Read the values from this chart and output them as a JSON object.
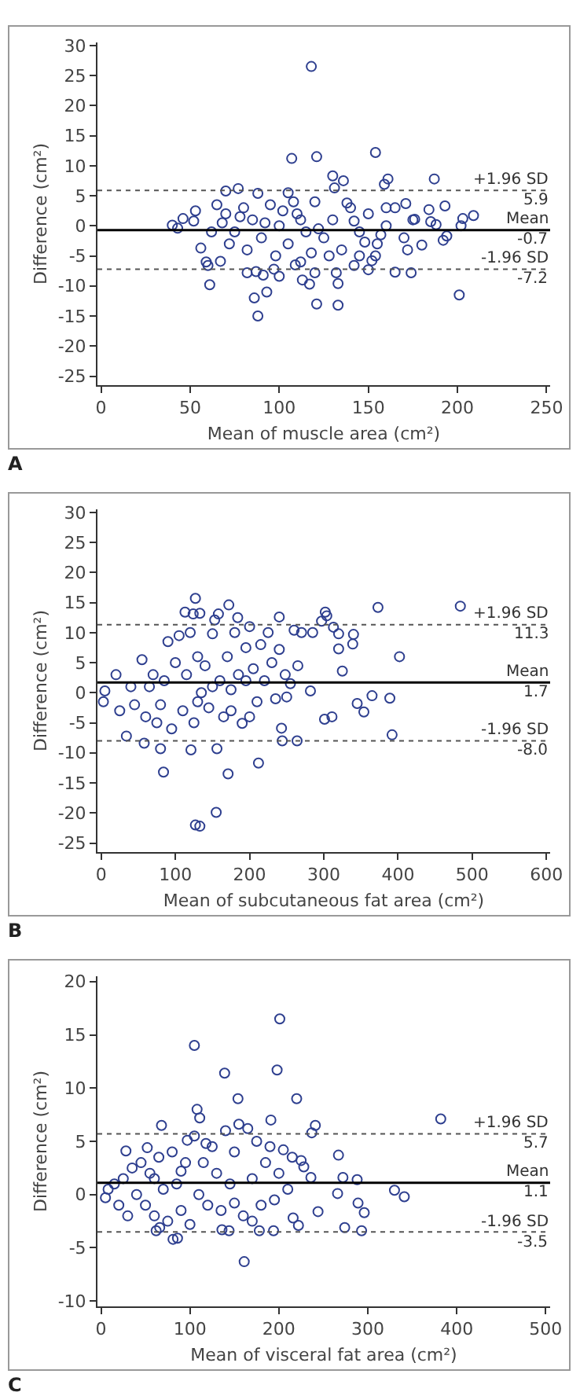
{
  "chart_data": [
    {
      "type": "scatter",
      "xlabel": "Mean of muscle area (cm²)",
      "ylabel": "Difference (cm²)",
      "annotations": [
        "A"
      ],
      "xlim": [
        -2,
        252
      ],
      "xticks": [
        0,
        50,
        100,
        150,
        200,
        250
      ],
      "ylim": [
        -26.5,
        30.5
      ],
      "yticks": [
        -25,
        -20,
        -15,
        -10,
        -5,
        0,
        5,
        10,
        15,
        20,
        25,
        30
      ],
      "grid": false,
      "marker": "circle",
      "ref_lines": [
        {
          "axis": "y",
          "value": 5.9,
          "label": "+1.96 SD\n5.9",
          "line_style": "dotted",
          "color": "#555555"
        },
        {
          "axis": "y",
          "value": -0.7,
          "label": "Mean\n-0.7",
          "line_style": "solid",
          "color": "#000000"
        },
        {
          "axis": "y",
          "value": -7.2,
          "label": "-1.96 SD\n-7.2",
          "line_style": "dotted",
          "color": "#555555"
        }
      ],
      "series": [
        {
          "color": "#2e3f8f",
          "x": [
            118,
            107,
            121,
            154,
            130,
            136,
            161,
            187,
            77,
            131,
            70,
            88,
            105,
            159,
            193,
            209,
            203,
            202,
            40,
            43,
            46,
            53,
            52,
            56,
            59,
            60,
            61,
            67,
            82,
            86,
            88,
            87,
            93,
            91,
            97,
            100,
            113,
            117,
            121,
            133,
            133,
            120,
            132,
            150,
            165,
            174,
            201,
            192,
            194,
            185,
            188,
            184,
            180,
            171,
            176,
            172,
            142,
            152,
            154,
            112,
            109,
            65,
            70,
            75,
            80,
            85,
            90,
            95,
            100,
            105,
            110,
            115,
            120,
            125,
            130,
            135,
            140,
            145,
            150,
            155,
            160,
            165,
            170,
            175,
            72,
            82,
            98,
            118,
            128,
            145,
            108,
            138,
            160,
            68,
            78,
            92,
            102,
            122,
            142,
            157,
            62,
            112,
            148
          ],
          "values": [
            26.5,
            11.2,
            11.5,
            12.2,
            8.3,
            7.5,
            7.8,
            7.8,
            6.2,
            6.3,
            5.8,
            5.4,
            5.5,
            6.9,
            3.3,
            1.7,
            1.2,
            0,
            0.1,
            -0.4,
            1.2,
            2.5,
            0.8,
            -3.7,
            -6,
            -6.6,
            -9.8,
            -5.9,
            -7.8,
            -12,
            -15,
            -7.6,
            -11,
            -8.2,
            -7.2,
            -8.4,
            -9,
            -9.7,
            -13,
            -13.2,
            -9.6,
            -7.8,
            -7.8,
            -7.3,
            -7.7,
            -7.8,
            -11.5,
            -2.4,
            -1.7,
            0.7,
            0.2,
            2.7,
            -3.2,
            3.7,
            1.1,
            -4,
            -6.6,
            -5.8,
            -5,
            -6,
            -6.5,
            3.5,
            2,
            -1,
            3,
            1,
            -2,
            3.5,
            0,
            -3,
            2,
            -1,
            4,
            -2,
            1,
            -4,
            3,
            -1,
            2,
            -3,
            0,
            3,
            -2,
            1,
            -3,
            -4,
            -5,
            -4.5,
            -5,
            -5,
            4,
            3.8,
            3,
            0.5,
            1.5,
            0.5,
            2.5,
            -0.5,
            0.8,
            -1.5,
            -1,
            1,
            -2.7
          ]
        }
      ]
    },
    {
      "type": "scatter",
      "xlabel": "Mean of subcutaneous fat area (cm²)",
      "ylabel": "Difference (cm²)",
      "annotations": [
        "B"
      ],
      "xlim": [
        -5,
        605
      ],
      "xticks": [
        0,
        100,
        200,
        300,
        400,
        500,
        600
      ],
      "ylim": [
        -26.5,
        30.5
      ],
      "yticks": [
        -25,
        -20,
        -15,
        -10,
        -5,
        0,
        5,
        10,
        15,
        20,
        25,
        30
      ],
      "grid": false,
      "marker": "circle",
      "ref_lines": [
        {
          "axis": "y",
          "value": 11.3,
          "label": "+1.96 SD\n11.3",
          "line_style": "dotted",
          "color": "#555555"
        },
        {
          "axis": "y",
          "value": 1.7,
          "label": "Mean\n1.7",
          "line_style": "solid",
          "color": "#000000"
        },
        {
          "axis": "y",
          "value": -8.0,
          "label": "-1.96 SD\n-8.0",
          "line_style": "dotted",
          "color": "#555555"
        }
      ],
      "series": [
        {
          "color": "#2e3f8f",
          "x": [
            127,
            172,
            113,
            124,
            133,
            158,
            153,
            184,
            240,
            302,
            304,
            297,
            313,
            320,
            340,
            339,
            373,
            484,
            320,
            325,
            282,
            265,
            301,
            311,
            345,
            354,
            365,
            389,
            392,
            402,
            243,
            244,
            264,
            212,
            171,
            84,
            121,
            156,
            80,
            58,
            34,
            127,
            133,
            155,
            5,
            3,
            20,
            25,
            40,
            55,
            60,
            70,
            80,
            90,
            95,
            100,
            105,
            110,
            115,
            120,
            125,
            130,
            135,
            140,
            145,
            150,
            160,
            165,
            170,
            175,
            180,
            185,
            190,
            195,
            200,
            200,
            205,
            210,
            215,
            220,
            225,
            230,
            235,
            240,
            248,
            250,
            255,
            260,
            270,
            285,
            45,
            65,
            75,
            85,
            130,
            150,
            175,
            195
          ],
          "values": [
            15.7,
            14.6,
            13.4,
            13.1,
            13.2,
            13.1,
            12.1,
            12.5,
            12.6,
            13.4,
            12.8,
            11.9,
            10.9,
            9.8,
            9.7,
            8.1,
            14.2,
            14.4,
            7.3,
            3.6,
            0.3,
            4.5,
            -4.4,
            -4,
            -1.8,
            -3.2,
            -0.5,
            -0.9,
            -7,
            6,
            -5.9,
            -8,
            -8,
            -11.7,
            -13.5,
            -13.2,
            -9.5,
            -9.3,
            -9.3,
            -8.4,
            -7.2,
            -22,
            -22.2,
            -19.9,
            0.3,
            -1.5,
            3,
            -3,
            1,
            5.5,
            -4,
            3,
            -2,
            8.5,
            -6,
            5,
            9.5,
            -3,
            3,
            10,
            -5,
            6,
            0,
            4.5,
            -2.5,
            9.8,
            2,
            -4,
            6,
            0.5,
            10,
            3,
            -5.1,
            7.5,
            -4,
            11,
            4,
            -1.5,
            8,
            2,
            10,
            5,
            -1,
            7.2,
            3,
            -0.7,
            1.5,
            10.4,
            10,
            10,
            -2,
            1,
            -5,
            2,
            -1.5,
            1,
            -3,
            2
          ]
        }
      ]
    },
    {
      "type": "scatter",
      "xlabel": "Mean of visceral fat area (cm²)",
      "ylabel": "Difference (cm²)",
      "annotations": [
        "C"
      ],
      "xlim": [
        -4,
        505
      ],
      "xticks": [
        0,
        100,
        200,
        300,
        400,
        500
      ],
      "ylim": [
        -10.5,
        20.5
      ],
      "yticks": [
        -10,
        -5,
        0,
        5,
        10,
        15,
        20
      ],
      "grid": false,
      "marker": "circle",
      "ref_lines": [
        {
          "axis": "y",
          "value": 5.7,
          "label": "+1.96 SD\n5.7",
          "line_style": "dotted",
          "color": "#555555"
        },
        {
          "axis": "y",
          "value": 1.1,
          "label": "Mean\n1.1",
          "line_style": "solid",
          "color": "#000000"
        },
        {
          "axis": "y",
          "value": -3.5,
          "label": "-1.96 SD\n-3.5",
          "line_style": "dotted",
          "color": "#555555"
        }
      ],
      "series": [
        {
          "color": "#2e3f8f",
          "x": [
            201,
            105,
            139,
            198,
            154,
            220,
            108,
            111,
            191,
            68,
            382,
            241,
            237,
            267,
            272,
            288,
            236,
            228,
            225,
            330,
            341,
            266,
            289,
            296,
            244,
            216,
            222,
            274,
            293,
            161,
            81,
            86,
            62,
            66,
            136,
            144,
            178,
            194,
            28,
            52,
            5,
            8,
            15,
            20,
            25,
            30,
            35,
            40,
            45,
            50,
            55,
            60,
            65,
            70,
            75,
            80,
            85,
            90,
            95,
            100,
            105,
            110,
            115,
            120,
            125,
            130,
            135,
            140,
            145,
            150,
            155,
            160,
            165,
            170,
            175,
            180,
            185,
            190,
            195,
            200,
            205,
            210,
            215,
            97,
            118,
            150,
            170,
            90,
            60
          ],
          "values": [
            16.5,
            14,
            11.4,
            11.7,
            9,
            9,
            8,
            7.2,
            7,
            6.5,
            7.1,
            6.5,
            5.8,
            3.7,
            1.6,
            1.4,
            1.6,
            2.6,
            3.2,
            0.4,
            -0.2,
            0.1,
            -0.8,
            -1.7,
            -1.6,
            -2.2,
            -2.9,
            -3.1,
            -3.4,
            -6.3,
            -4.2,
            -4.1,
            -3.4,
            -3.1,
            -3.3,
            -3.4,
            -3.4,
            -3.4,
            4.1,
            4.4,
            -0.3,
            0.5,
            1,
            -1,
            1.5,
            -2,
            2.5,
            0,
            3,
            -1,
            2,
            -2,
            3.5,
            0.5,
            -2.5,
            4,
            1,
            -1.5,
            3,
            -2.8,
            5.5,
            0,
            3,
            -1,
            4.5,
            2,
            -1.5,
            6,
            1,
            4,
            6.6,
            -2,
            6.2,
            1.5,
            5,
            -1,
            3,
            4.5,
            -0.5,
            2,
            4.2,
            0.5,
            3.5,
            5.1,
            4.8,
            -0.8,
            -2.5,
            2.2,
            1.5
          ]
        }
      ]
    }
  ]
}
